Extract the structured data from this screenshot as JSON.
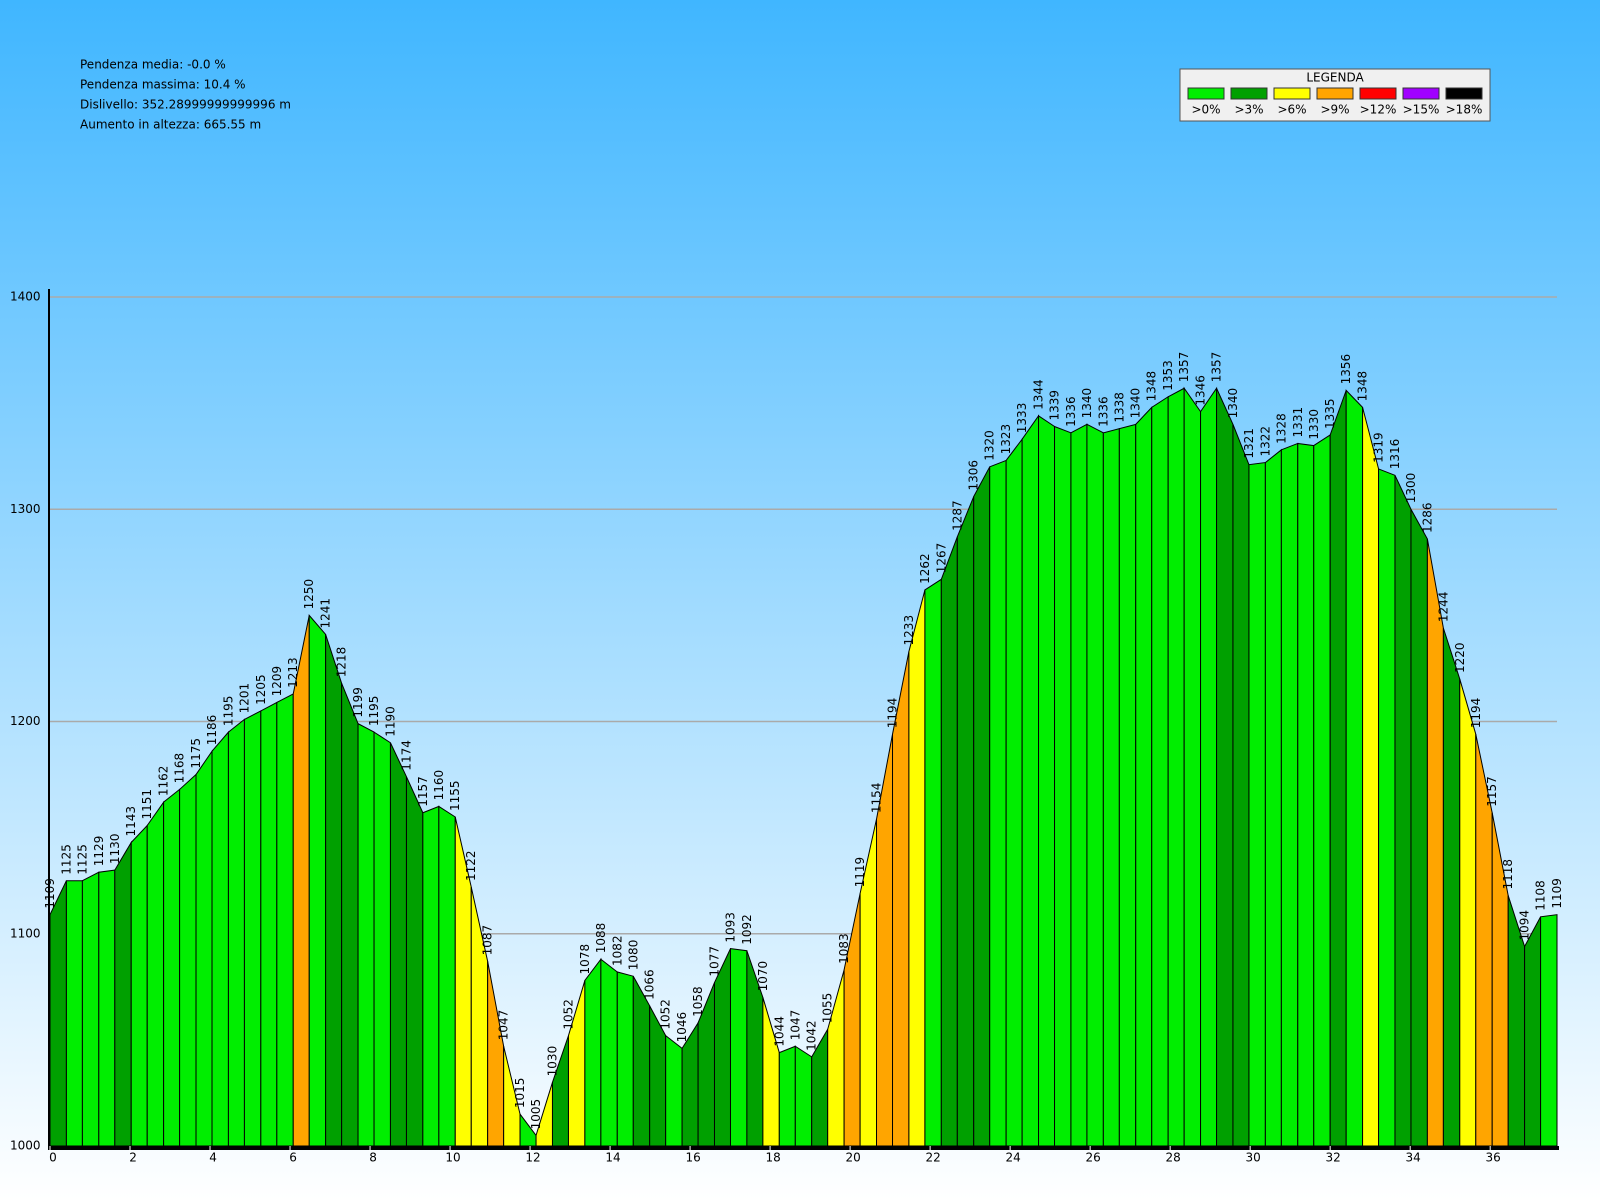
{
  "chart_data": {
    "type": "area-profile",
    "info": [
      "Pendenza media: -0.0 %",
      "Pendenza massima: 10.4 %",
      "Dislivello: 352.28999999999996 m",
      "Aumento in altezza: 665.55 m"
    ],
    "legend_title": "LEGENDA",
    "legend": [
      {
        "value": 0,
        "label": ">0%",
        "color": "#00ee00"
      },
      {
        "value": 3,
        "label": ">3%",
        "color": "#00a000"
      },
      {
        "value": 6,
        "label": ">6%",
        "color": "#ffff00"
      },
      {
        "value": 9,
        "label": ">9%",
        "color": "#ffa500"
      },
      {
        "value": 12,
        "label": ">12%",
        "color": "#ff0000"
      },
      {
        "value": 15,
        "label": ">15%",
        "color": "#a000ff"
      },
      {
        "value": 18,
        "label": ">18%",
        "color": "#000000"
      }
    ],
    "x": [
      0,
      0.41,
      0.81,
      1.22,
      1.62,
      2.03,
      2.43,
      2.84,
      3.24,
      3.65,
      4.05,
      4.46,
      4.86,
      5.27,
      5.67,
      6.08,
      6.48,
      6.89,
      7.29,
      7.7,
      8.1,
      8.51,
      8.91,
      9.32,
      9.72,
      10.13,
      10.53,
      10.94,
      11.34,
      11.75,
      12.15,
      12.56,
      12.96,
      13.37,
      13.77,
      14.18,
      14.58,
      14.99,
      15.39,
      15.8,
      16.2,
      16.61,
      17.01,
      17.42,
      17.82,
      18.23,
      18.63,
      19.04,
      19.44,
      19.85,
      20.25,
      20.66,
      21.06,
      21.47,
      21.87,
      22.28,
      22.68,
      23.09,
      23.49,
      23.9,
      24.3,
      24.71,
      25.11,
      25.52,
      25.92,
      26.33,
      26.73,
      27.14,
      27.54,
      27.95,
      28.35,
      28.76,
      29.16,
      29.57,
      29.97,
      30.38,
      30.78,
      31.19,
      31.59,
      32.0,
      32.4,
      32.81,
      33.21,
      33.62,
      34.02,
      34.43,
      34.83,
      35.24,
      35.64,
      36.05,
      36.45,
      36.86,
      37.26,
      37.67
    ],
    "values": [
      1109,
      1125,
      1125,
      1129,
      1130,
      1143,
      1151,
      1162,
      1168,
      1175,
      1186,
      1195,
      1201,
      1205,
      1209,
      1213,
      1250,
      1241,
      1218,
      1199,
      1195,
      1190,
      1174,
      1157,
      1160,
      1155,
      1122,
      1087,
      1047,
      1015,
      1005,
      1030,
      1052,
      1078,
      1088,
      1082,
      1080,
      1066,
      1052,
      1046,
      1058,
      1077,
      1093,
      1092,
      1070,
      1044,
      1047,
      1042,
      1055,
      1083,
      1119,
      1154,
      1194,
      1233,
      1262,
      1267,
      1287,
      1306,
      1320,
      1323,
      1333,
      1344,
      1339,
      1336,
      1340,
      1336,
      1338,
      1340,
      1348,
      1353,
      1357,
      1346,
      1357,
      1340,
      1321,
      1322,
      1328,
      1331,
      1330,
      1335,
      1356,
      1348,
      1319,
      1316,
      1300,
      1286,
      1244,
      1220,
      1194,
      1157,
      1118,
      1094,
      1108,
      1109
    ],
    "xlim": [
      0,
      37.67
    ],
    "ylim": [
      1000,
      1400
    ],
    "xticks": [
      0,
      2,
      4,
      6,
      8,
      10,
      12,
      14,
      16,
      18,
      20,
      22,
      24,
      26,
      28,
      30,
      32,
      34,
      36
    ],
    "yticks": [
      1000,
      1100,
      1200,
      1300,
      1400
    ],
    "grid": true
  }
}
